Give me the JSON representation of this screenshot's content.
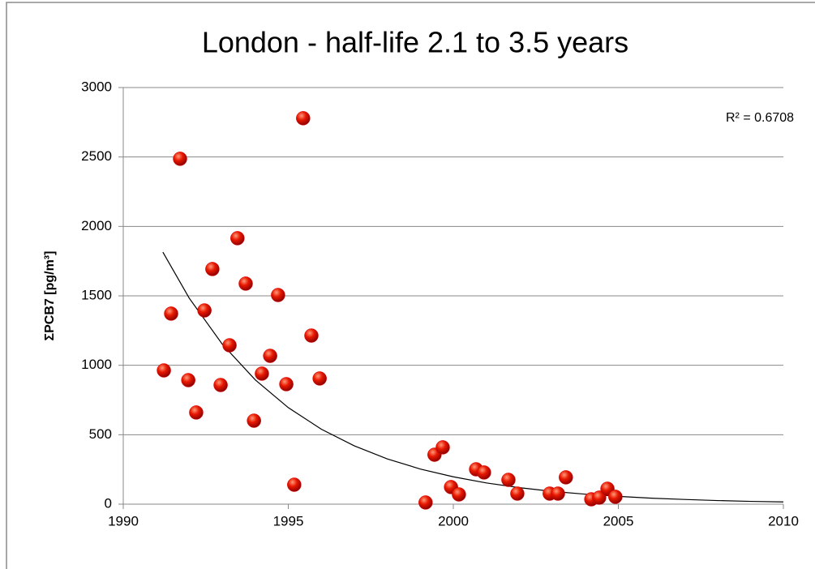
{
  "chart_data": {
    "type": "scatter",
    "title": "London - half-life 2.1 to 3.5 years",
    "y_label": "ΣPCB7 [pg/m³]",
    "annotation": "R² = 0.6708",
    "color": "#e00000",
    "x": [
      1991.23,
      1991.45,
      1991.72,
      1991.97,
      1992.21,
      1992.46,
      1992.7,
      1992.95,
      1993.22,
      1993.46,
      1993.71,
      1993.96,
      1994.2,
      1994.45,
      1994.69,
      1994.94,
      1995.18,
      1995.45,
      1995.7,
      1995.95,
      1999.16,
      1999.43,
      1999.68,
      1999.93,
      2000.17,
      2000.69,
      2000.93,
      2001.67,
      2001.94,
      2002.92,
      2003.17,
      2003.41,
      2004.18,
      2004.42,
      2004.67,
      2004.91
    ],
    "values": [
      963,
      1372,
      2487,
      893,
      660,
      1395,
      1693,
      858,
      1144,
      1915,
      1588,
      601,
      940,
      1068,
      1506,
      864,
      140,
      2779,
      1214,
      905,
      12,
      356,
      409,
      123,
      70,
      251,
      228,
      175,
      76,
      76,
      76,
      193,
      35,
      47,
      111,
      53
    ],
    "trendline": {
      "color": "#000000",
      "x": [
        1991.2,
        1992,
        1993,
        1994,
        1995,
        1996,
        1997,
        1998,
        1999,
        2000,
        2001,
        2002,
        2003,
        2004,
        2005,
        2006,
        2007,
        2008,
        2009,
        2010
      ],
      "values": [
        1815,
        1483,
        1152,
        895,
        695,
        540,
        420,
        326,
        253,
        197,
        153,
        119,
        92,
        72,
        56,
        43,
        34,
        26,
        20,
        16
      ]
    },
    "xlim": [
      1990,
      2010
    ],
    "xticks": [
      1990,
      1995,
      2000,
      2005,
      2010
    ],
    "ylim": [
      0,
      3000
    ],
    "yticks": [
      0,
      500,
      1000,
      1500,
      2000,
      2500,
      3000
    ],
    "grid": true
  }
}
